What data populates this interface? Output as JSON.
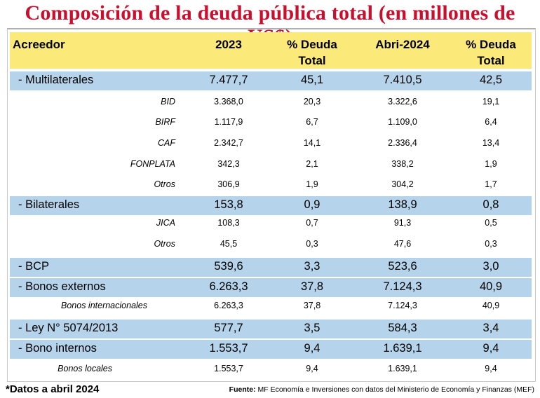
{
  "title": "Composición de la deuda pública total (en millones de US$)",
  "chart_data": {
    "type": "table",
    "title": "Composición de la deuda pública total (en millones de US$)",
    "columns": [
      "Acreedor",
      "2023",
      "% Deuda Total",
      "Abri-2024",
      "% Deuda Total"
    ],
    "header": {
      "acreedor": "Acreedor",
      "y2023": "2023",
      "pct1_line1": "% Deuda",
      "pct1_line2": "Total",
      "y2024": "Abri-2024",
      "pct2_line1": "% Deuda",
      "pct2_line2": "Total"
    },
    "rows": [
      {
        "level": "main",
        "label": "- Multilaterales",
        "v2023": "7.477,7",
        "pct2023": "45,1",
        "v2024": "7.410,5",
        "pct2024": "42,5"
      },
      {
        "level": "sub",
        "label": "BID",
        "v2023": "3.368,0",
        "pct2023": "20,3",
        "v2024": "3.322,6",
        "pct2024": "19,1"
      },
      {
        "level": "sub",
        "label": "BIRF",
        "v2023": "1.117,9",
        "pct2023": "6,7",
        "v2024": "1.109,0",
        "pct2024": "6,4"
      },
      {
        "level": "sub",
        "label": "CAF",
        "v2023": "2.342,7",
        "pct2023": "14,1",
        "v2024": "2.336,4",
        "pct2024": "13,4"
      },
      {
        "level": "sub",
        "label": "FONPLATA",
        "v2023": "342,3",
        "pct2023": "2,1",
        "v2024": "338,2",
        "pct2024": "1,9"
      },
      {
        "level": "sub",
        "label": "Otros",
        "v2023": "306,9",
        "pct2023": "1,9",
        "v2024": "304,2",
        "pct2024": "1,7"
      },
      {
        "level": "main",
        "label": "- Bilaterales",
        "v2023": "153,8",
        "pct2023": "0,9",
        "v2024": "138,9",
        "pct2024": "0,8"
      },
      {
        "level": "sub",
        "label": "JICA",
        "v2023": "108,3",
        "pct2023": "0,7",
        "v2024": "91,3",
        "pct2024": "0,5"
      },
      {
        "level": "sub",
        "label": "Otros",
        "v2023": "45,5",
        "pct2023": "0,3",
        "v2024": "47,6",
        "pct2024": "0,3"
      },
      {
        "level": "main",
        "label": "- BCP",
        "v2023": "539,6",
        "pct2023": "3,3",
        "v2024": "523,6",
        "pct2024": "3,0"
      },
      {
        "level": "main",
        "label": "- Bonos externos",
        "v2023": "6.263,3",
        "pct2023": "37,8",
        "v2024": "7.124,3",
        "pct2024": "40,9"
      },
      {
        "level": "sub",
        "label": "Bonos internacionales",
        "v2023": "6.263,3",
        "pct2023": "37,8",
        "v2024": "7.124,3",
        "pct2024": "40,9"
      },
      {
        "level": "main",
        "label": "- Ley N° 5074/2013",
        "v2023": "577,7",
        "pct2023": "3,5",
        "v2024": "584,3",
        "pct2024": "3,4"
      },
      {
        "level": "main",
        "label": "- Bono internos",
        "v2023": "1.553,7",
        "pct2023": "9,4",
        "v2024": "1.639,1",
        "pct2024": "9,4"
      },
      {
        "level": "sub",
        "label": "Bonos locales",
        "v2023": "1.553,7",
        "pct2023": "9,4",
        "v2024": "1.639,1",
        "pct2024": "9,4"
      }
    ]
  },
  "footnote": "*Datos a abril 2024",
  "source_label": "Fuente:",
  "source_text": "MF Economía e Inversiones con datos del Ministerio de Economía y Finanzas (MEF)",
  "colors": {
    "title": "#c8102e",
    "header_bg": "#fbe97a",
    "row_highlight": "#b5d3ea"
  }
}
